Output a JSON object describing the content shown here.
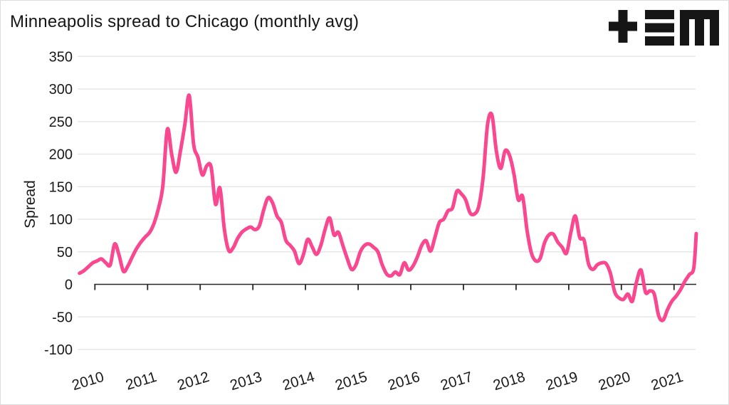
{
  "header": {
    "title": "Minneapolis spread to Chicago (monthly avg)",
    "logo": "tem-logo"
  },
  "chart_data": {
    "type": "line",
    "title": "Minneapolis spread to Chicago (monthly avg)",
    "xlabel": "",
    "ylabel": "Spread",
    "ylim": [
      -100,
      350
    ],
    "grid": true,
    "legend": false,
    "y_ticks": [
      350,
      300,
      250,
      200,
      150,
      100,
      50,
      0,
      -50,
      -100
    ],
    "x_tick_labels": [
      "2010",
      "2011",
      "2012",
      "2013",
      "2014",
      "2015",
      "2016",
      "2017",
      "2018",
      "2019",
      "2020",
      "2021"
    ],
    "series": [
      {
        "name": "Minneapolis spread to Chicago",
        "color": "#F9488F",
        "start": "2009-09",
        "frequency": "monthly",
        "values": [
          17,
          21,
          27,
          33,
          36,
          39,
          33,
          30,
          62,
          45,
          20,
          28,
          42,
          55,
          65,
          73,
          80,
          94,
          117,
          152,
          238,
          200,
          172,
          205,
          245,
          290,
          215,
          195,
          168,
          182,
          180,
          123,
          148,
          85,
          52,
          56,
          70,
          80,
          85,
          88,
          84,
          90,
          115,
          133,
          125,
          105,
          95,
          68,
          60,
          51,
          32,
          45,
          69,
          58,
          46,
          60,
          85,
          102,
          76,
          80,
          60,
          40,
          23,
          30,
          50,
          60,
          62,
          57,
          50,
          30,
          16,
          13,
          19,
          15,
          33,
          22,
          28,
          42,
          60,
          67,
          51,
          72,
          95,
          100,
          113,
          117,
          143,
          139,
          130,
          110,
          108,
          120,
          165,
          245,
          260,
          205,
          178,
          205,
          198,
          170,
          130,
          135,
          83,
          48,
          36,
          40,
          64,
          76,
          77,
          65,
          57,
          48,
          80,
          105,
          72,
          68,
          32,
          23,
          30,
          33,
          32,
          17,
          -12,
          -21,
          -23,
          -15,
          -26,
          5,
          22,
          -12,
          -10,
          -15,
          -48,
          -55,
          -39,
          -26,
          -18,
          -8,
          5,
          15,
          25,
          78
        ]
      }
    ]
  },
  "colors": {
    "background": "#ffffff",
    "line": "#F9488F",
    "grid": "#e7e7e7",
    "axis": "#262626",
    "text": "#1a1a1a",
    "border": "#dcdcdc"
  }
}
